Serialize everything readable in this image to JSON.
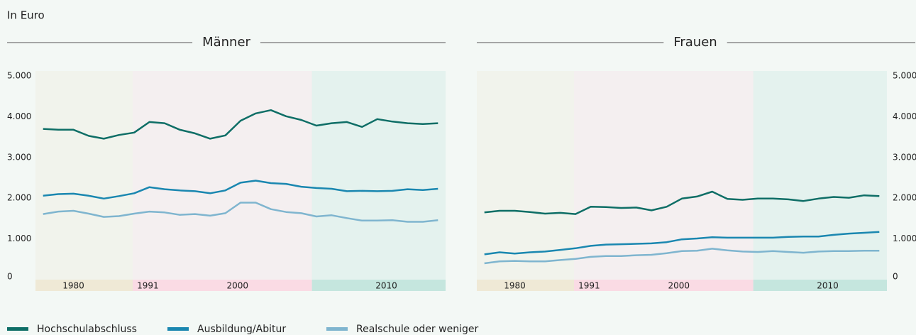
{
  "chart_data": [
    {
      "type": "line",
      "title": "Männer",
      "y_label": "In Euro",
      "y_axis_side": "left",
      "categories": [
        null,
        null,
        null,
        null,
        null,
        null,
        null,
        null,
        null,
        null,
        null,
        null,
        null,
        null,
        null,
        null,
        null,
        null,
        null,
        null,
        null,
        null,
        null,
        null,
        null,
        null,
        null
      ],
      "ylim": [
        0,
        5000
      ],
      "yticks": [
        0,
        {
          "value": 1000,
          "label": "1.000"
        },
        {
          "value": 2000,
          "label": "2.000"
        },
        {
          "value": 3000,
          "label": "3.000"
        },
        {
          "value": 4000,
          "label": "4.000"
        },
        {
          "value": 5000,
          "label": "5.000"
        }
      ],
      "bands": [
        {
          "from": 0,
          "to": 6.4,
          "color": "#efe9d6"
        },
        {
          "from": 6.4,
          "to": 18.2,
          "color": "#fadbe4"
        },
        {
          "from": 18.2,
          "to": 27,
          "color": "#c5e6de"
        }
      ],
      "band_labels": [
        {
          "text": "1980",
          "at": 2.5
        },
        {
          "text": "1991",
          "at": 7.4
        },
        {
          "text": "2000",
          "at": 13.3
        },
        {
          "text": "2010",
          "at": 23.1
        }
      ],
      "legend": "bottom-left",
      "series": [
        {
          "name": "Hochschulabschluss",
          "color": "#0e6e66",
          "values": [
            3700,
            3680,
            3680,
            3530,
            3460,
            3550,
            3610,
            3870,
            3840,
            3680,
            3590,
            3460,
            3540,
            3900,
            4080,
            4160,
            4010,
            3920,
            3780,
            3840,
            3870,
            3750,
            3940,
            3880,
            3840,
            3820,
            3840
          ]
        },
        {
          "name": "Ausbildung/Abitur",
          "color": "#1a87b0",
          "values": [
            2060,
            2100,
            2110,
            2060,
            1990,
            2050,
            2120,
            2270,
            2220,
            2190,
            2170,
            2120,
            2190,
            2380,
            2430,
            2370,
            2350,
            2280,
            2250,
            2230,
            2170,
            2180,
            2170,
            2180,
            2220,
            2200,
            2230
          ]
        },
        {
          "name": "Realschule oder weniger",
          "color": "#7fb5cf",
          "values": [
            1610,
            1670,
            1690,
            1620,
            1540,
            1560,
            1620,
            1670,
            1650,
            1590,
            1610,
            1570,
            1630,
            1890,
            1890,
            1730,
            1660,
            1630,
            1550,
            1580,
            1510,
            1450,
            1450,
            1460,
            1420,
            1420,
            1460
          ]
        }
      ]
    },
    {
      "type": "line",
      "title": "Frauen",
      "y_axis_side": "right",
      "categories": [
        null,
        null,
        null,
        null,
        null,
        null,
        null,
        null,
        null,
        null,
        null,
        null,
        null,
        null,
        null,
        null,
        null,
        null,
        null,
        null,
        null,
        null,
        null,
        null,
        null,
        null,
        null
      ],
      "ylim": [
        0,
        5000
      ],
      "yticks": [
        0,
        {
          "value": 1000,
          "label": "1.000"
        },
        {
          "value": 2000,
          "label": "2.000"
        },
        {
          "value": 3000,
          "label": "3.000"
        },
        {
          "value": 4000,
          "label": "4.000"
        },
        {
          "value": 5000,
          "label": "5.000"
        }
      ],
      "bands": [
        {
          "from": 0,
          "to": 6.4,
          "color": "#efe9d6"
        },
        {
          "from": 6.4,
          "to": 18.2,
          "color": "#fadbe4"
        },
        {
          "from": 18.2,
          "to": 27,
          "color": "#c5e6de"
        }
      ],
      "band_labels": [
        {
          "text": "1980",
          "at": 2.5
        },
        {
          "text": "1991",
          "at": 7.4
        },
        {
          "text": "2000",
          "at": 13.3
        },
        {
          "text": "2010",
          "at": 23.1
        }
      ],
      "series": [
        {
          "color": "#0e6e66",
          "values": [
            1650,
            1690,
            1690,
            1660,
            1620,
            1640,
            1610,
            1790,
            1780,
            1760,
            1770,
            1700,
            1790,
            1990,
            2040,
            2160,
            1980,
            1960,
            1990,
            1990,
            1970,
            1930,
            1990,
            2030,
            2010,
            2070,
            2050
          ]
        },
        {
          "color": "#1a87b0",
          "values": [
            620,
            670,
            640,
            670,
            690,
            730,
            770,
            830,
            860,
            870,
            880,
            890,
            920,
            990,
            1010,
            1040,
            1030,
            1030,
            1030,
            1030,
            1050,
            1060,
            1060,
            1100,
            1130,
            1150,
            1170
          ]
        },
        {
          "color": "#7fb5cf",
          "values": [
            400,
            450,
            460,
            450,
            450,
            480,
            510,
            560,
            580,
            580,
            600,
            610,
            650,
            700,
            710,
            760,
            720,
            690,
            680,
            700,
            680,
            660,
            690,
            700,
            700,
            710,
            710
          ]
        }
      ]
    }
  ]
}
